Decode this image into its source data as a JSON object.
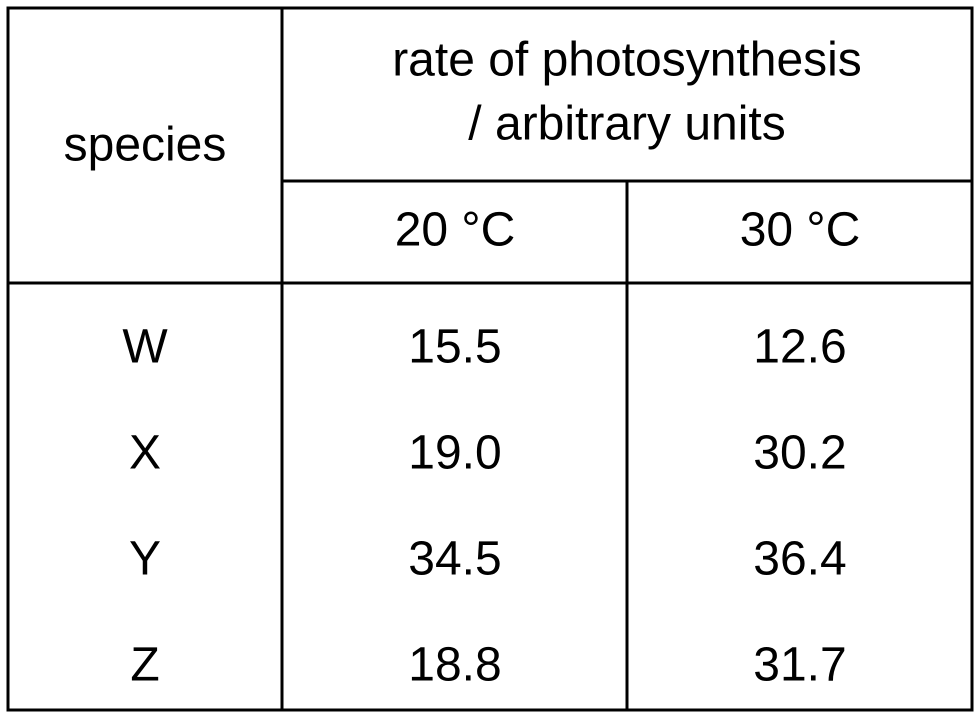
{
  "table": {
    "header": {
      "species": "species",
      "rate": [
        "rate of photosynthesis",
        "/ arbitrary units"
      ],
      "temperatures": [
        "20 °C",
        "30 °C"
      ]
    },
    "rows": [
      [
        "W",
        "15.5",
        "12.6"
      ],
      [
        "X",
        "19.0",
        "30.2"
      ],
      [
        "Y",
        "34.5",
        "36.4"
      ],
      [
        "Z",
        "18.8",
        "31.7"
      ]
    ]
  }
}
